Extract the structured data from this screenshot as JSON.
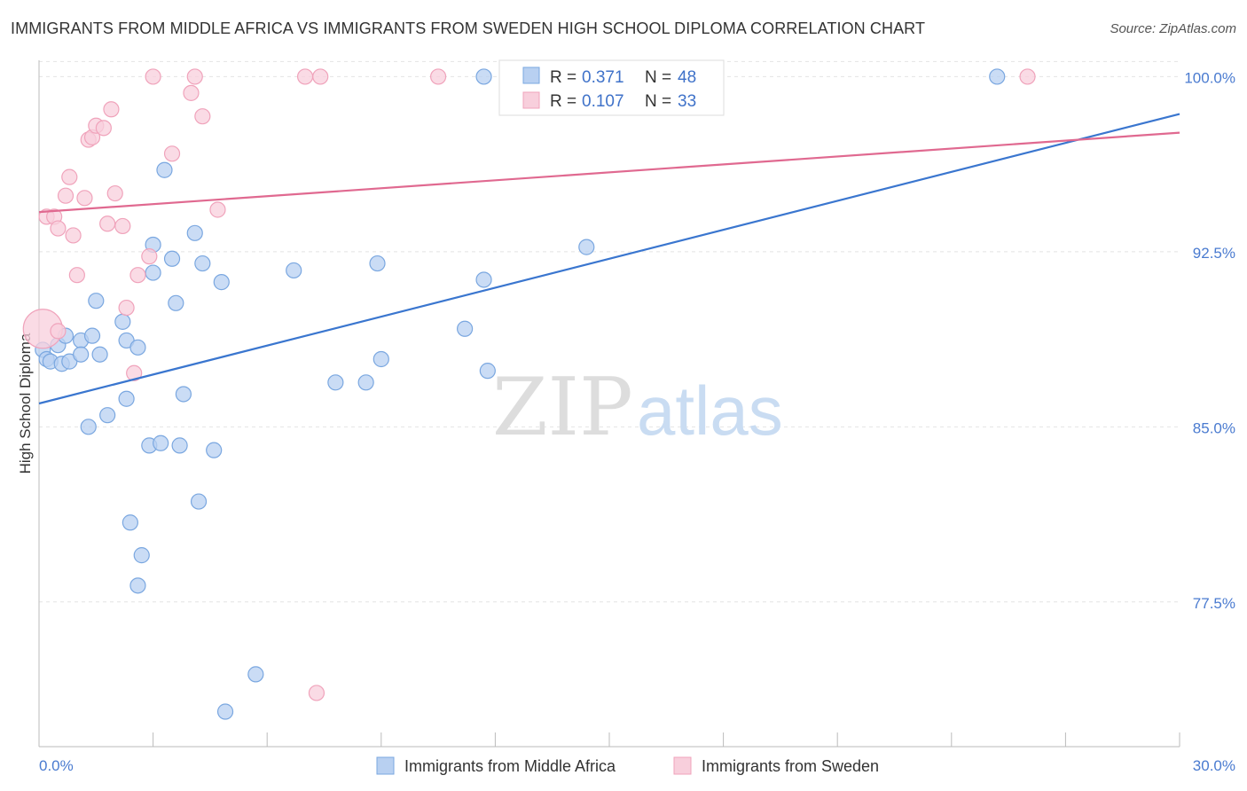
{
  "header": {
    "title": "IMMIGRANTS FROM MIDDLE AFRICA VS IMMIGRANTS FROM SWEDEN HIGH SCHOOL DIPLOMA CORRELATION CHART",
    "source": "Source: ZipAtlas.com"
  },
  "watermark": {
    "zip": "ZIP",
    "atlas": "atlas"
  },
  "chart_data": {
    "type": "scatter",
    "ylabel": "High School Diploma",
    "xlim": [
      0,
      30
    ],
    "ylim": [
      71.3,
      100.7
    ],
    "x_tick_labels": [
      {
        "value": 0,
        "label": "0.0%"
      },
      {
        "value": 30,
        "label": "30.0%"
      }
    ],
    "y_tick_labels": [
      {
        "value": 100,
        "label": "100.0%"
      },
      {
        "value": 92.5,
        "label": "92.5%"
      },
      {
        "value": 85,
        "label": "85.0%"
      },
      {
        "value": 77.5,
        "label": "77.5%"
      }
    ],
    "grid": true,
    "legend": {
      "placement": "top-center",
      "entries": [
        {
          "r_label": "R = ",
          "r_value": "0.371",
          "n_label": "N = ",
          "n_value": "48"
        },
        {
          "r_label": "R = ",
          "r_value": "0.107",
          "n_label": "N = ",
          "n_value": "33"
        }
      ]
    },
    "series": [
      {
        "name": "Immigrants from Middle Africa",
        "color": "#7aa7e0",
        "fill": "#b8d0f1",
        "line_color": "#3a76cf",
        "trend": {
          "x0": 0,
          "y0": 86.0,
          "x1": 30,
          "y1": 98.4
        },
        "points": [
          [
            0.1,
            88.3
          ],
          [
            0.2,
            87.9
          ],
          [
            0.3,
            87.8
          ],
          [
            0.5,
            88.5
          ],
          [
            0.6,
            87.7
          ],
          [
            0.7,
            88.9
          ],
          [
            0.8,
            87.8
          ],
          [
            1.1,
            88.7
          ],
          [
            1.1,
            88.1
          ],
          [
            1.3,
            85.0
          ],
          [
            1.4,
            88.9
          ],
          [
            1.5,
            90.4
          ],
          [
            1.6,
            88.1
          ],
          [
            1.8,
            85.5
          ],
          [
            2.2,
            89.5
          ],
          [
            2.3,
            88.7
          ],
          [
            2.3,
            86.2
          ],
          [
            2.4,
            80.9
          ],
          [
            2.6,
            88.4
          ],
          [
            2.6,
            78.2
          ],
          [
            2.7,
            79.5
          ],
          [
            2.9,
            84.2
          ],
          [
            3.0,
            92.8
          ],
          [
            3.0,
            91.6
          ],
          [
            3.2,
            84.3
          ],
          [
            3.3,
            96.0
          ],
          [
            3.5,
            92.2
          ],
          [
            3.6,
            90.3
          ],
          [
            3.7,
            84.2
          ],
          [
            3.8,
            86.4
          ],
          [
            4.1,
            93.3
          ],
          [
            4.2,
            81.8
          ],
          [
            4.3,
            92.0
          ],
          [
            4.6,
            84.0
          ],
          [
            4.8,
            91.2
          ],
          [
            4.9,
            72.8
          ],
          [
            5.7,
            74.4
          ],
          [
            6.7,
            91.7
          ],
          [
            7.8,
            86.9
          ],
          [
            8.6,
            86.9
          ],
          [
            8.9,
            92.0
          ],
          [
            9.0,
            87.9
          ],
          [
            11.2,
            89.2
          ],
          [
            11.7,
            91.3
          ],
          [
            11.8,
            87.4
          ],
          [
            11.7,
            100.0
          ],
          [
            14.4,
            92.7
          ],
          [
            25.2,
            100.0
          ]
        ]
      },
      {
        "name": "Immigrants from Sweden",
        "color": "#f0a3bb",
        "fill": "#f8cfdc",
        "line_color": "#e06990",
        "trend": {
          "x0": 0,
          "y0": 94.2,
          "x1": 30,
          "y1": 97.6
        },
        "points": [
          [
            0.1,
            89.2
          ],
          [
            0.2,
            94.0
          ],
          [
            0.4,
            94.0
          ],
          [
            0.5,
            93.5
          ],
          [
            0.5,
            89.1
          ],
          [
            0.7,
            94.9
          ],
          [
            0.8,
            95.7
          ],
          [
            0.9,
            93.2
          ],
          [
            1.0,
            91.5
          ],
          [
            1.2,
            94.8
          ],
          [
            1.3,
            97.3
          ],
          [
            1.4,
            97.4
          ],
          [
            1.5,
            97.9
          ],
          [
            1.7,
            97.8
          ],
          [
            1.8,
            93.7
          ],
          [
            1.9,
            98.6
          ],
          [
            2.0,
            95.0
          ],
          [
            2.2,
            93.6
          ],
          [
            2.3,
            90.1
          ],
          [
            2.5,
            87.3
          ],
          [
            2.6,
            91.5
          ],
          [
            2.9,
            92.3
          ],
          [
            3.0,
            100.0
          ],
          [
            3.5,
            96.7
          ],
          [
            4.0,
            99.3
          ],
          [
            4.1,
            100.0
          ],
          [
            4.3,
            98.3
          ],
          [
            4.7,
            94.3
          ],
          [
            7.3,
            73.6
          ],
          [
            7.0,
            100.0
          ],
          [
            7.4,
            100.0
          ],
          [
            10.5,
            100.0
          ],
          [
            26.0,
            100.0
          ]
        ]
      }
    ]
  }
}
